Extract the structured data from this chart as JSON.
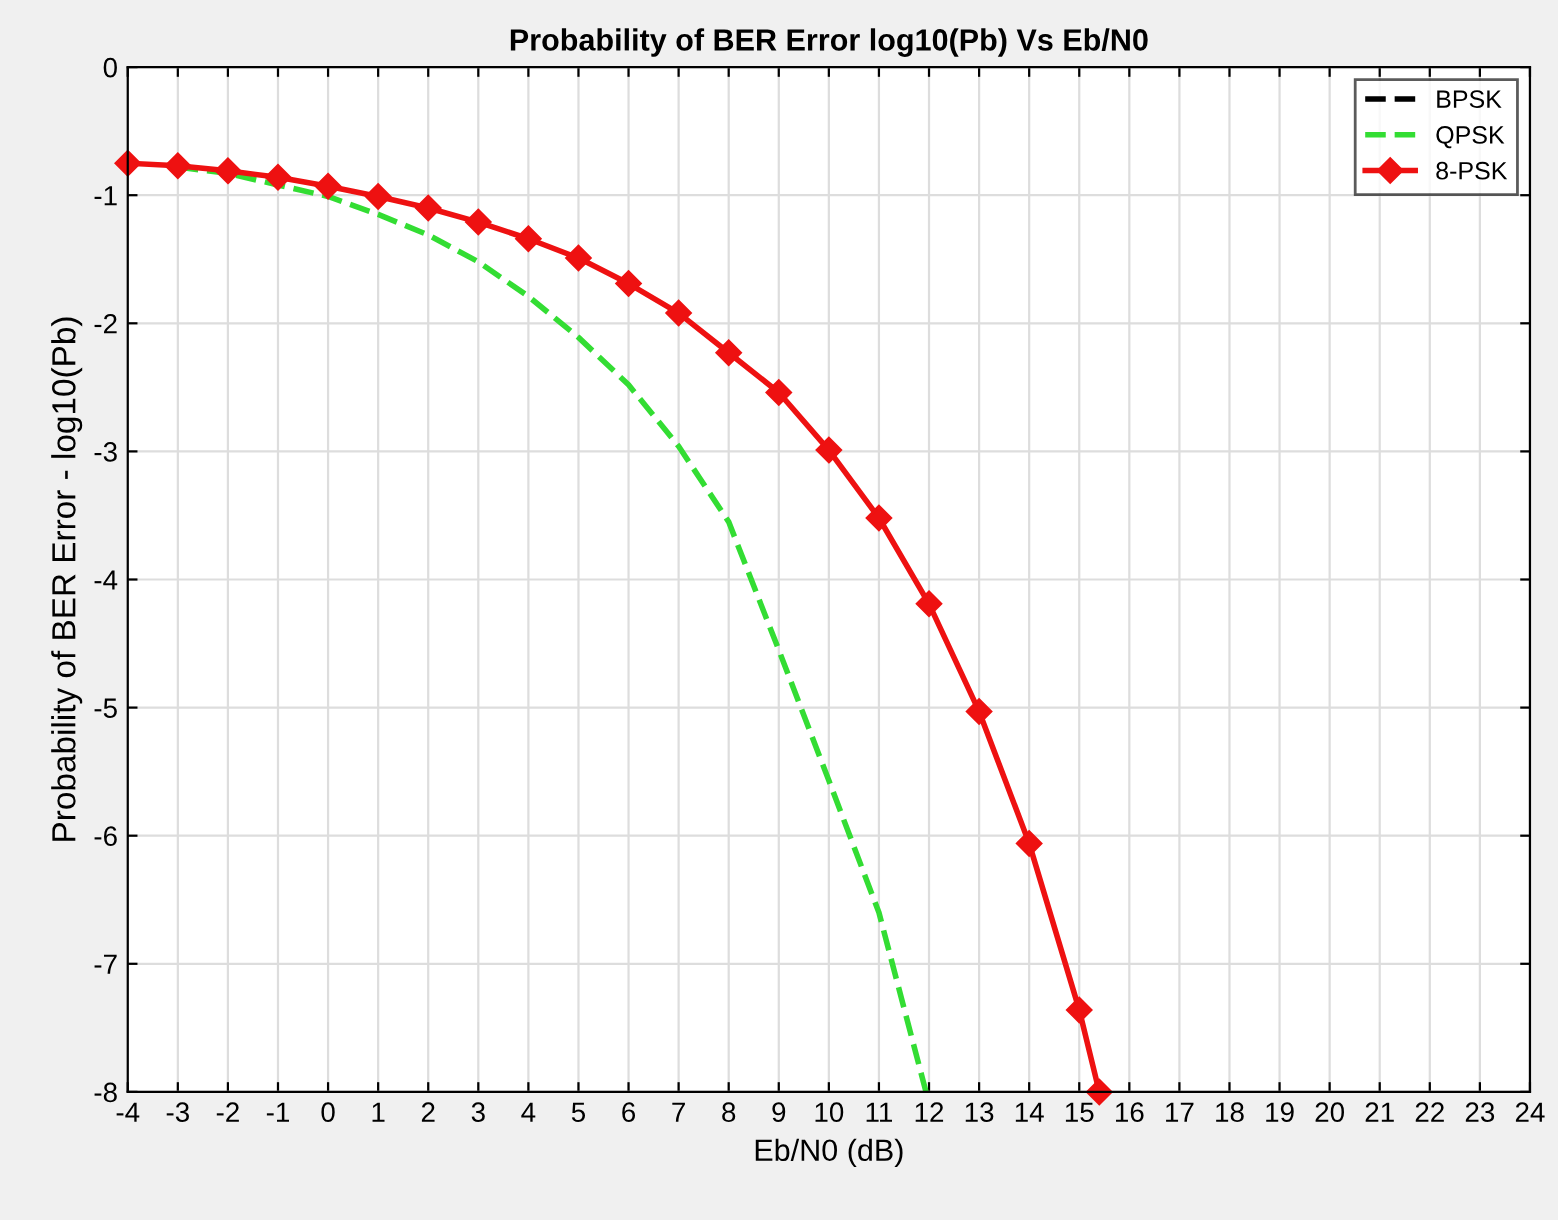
{
  "chart_data": {
    "type": "line",
    "title": "Probability of BER Error log10(Pb) Vs Eb/N0",
    "xlabel": "Eb/N0 (dB)",
    "ylabel": "Probability of BER Error - log10(Pb)",
    "xlim": [
      -4,
      24
    ],
    "xticks": [
      -4,
      -3,
      -2,
      -1,
      0,
      1,
      2,
      3,
      4,
      5,
      6,
      7,
      8,
      9,
      10,
      11,
      12,
      13,
      14,
      15,
      16,
      17,
      18,
      19,
      20,
      21,
      22,
      23,
      24
    ],
    "ylim": [
      -8,
      0
    ],
    "yticks": [
      -8,
      -7,
      -6,
      -5,
      -4,
      -3,
      -2,
      -1,
      0
    ],
    "grid": true,
    "legend": "top right",
    "series": [
      {
        "name": "BPSK",
        "color": "#000000",
        "line_style": "dashed",
        "marker": "none"
      },
      {
        "name": "QPSK",
        "color": "#33dd33",
        "line_style": "dashed",
        "marker": "none",
        "x": [
          -3,
          -2,
          -1,
          0,
          1,
          2,
          3,
          4,
          5,
          6,
          7,
          8,
          9,
          10,
          11,
          11.94
        ],
        "values": [
          -0.78,
          -0.83,
          -0.92,
          -1.01,
          -1.15,
          -1.31,
          -1.52,
          -1.79,
          -2.11,
          -2.48,
          -2.96,
          -3.55,
          -4.55,
          -5.57,
          -6.6,
          -8
        ]
      },
      {
        "name": "8-PSK",
        "color": "#ee1111",
        "line_style": "solid",
        "marker": "diamond",
        "x": [
          -4,
          -3,
          -2,
          -1,
          0,
          1,
          2,
          3,
          4,
          5,
          6,
          7,
          8,
          9,
          10,
          11,
          12,
          13,
          14,
          15,
          15.4
        ],
        "values": [
          -0.75,
          -0.77,
          -0.81,
          -0.86,
          -0.93,
          -1.01,
          -1.1,
          -1.21,
          -1.34,
          -1.49,
          -1.69,
          -1.92,
          -2.23,
          -2.54,
          -2.99,
          -3.52,
          -4.19,
          -5.03,
          -6.06,
          -7.36,
          -8
        ]
      }
    ]
  }
}
